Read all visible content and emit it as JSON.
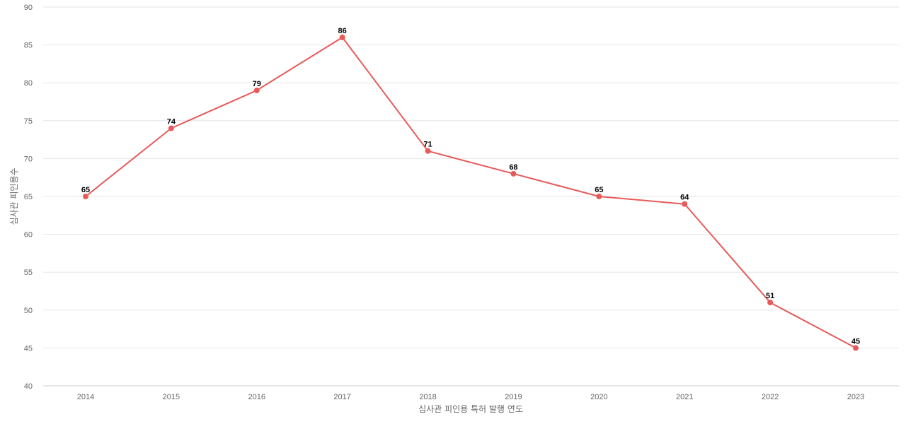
{
  "chart_data": {
    "type": "line",
    "title": "",
    "xlabel": "심사관 피인용 특허 발행 연도",
    "ylabel": "심사관 피인용수",
    "categories": [
      "2014",
      "2015",
      "2016",
      "2017",
      "2018",
      "2019",
      "2020",
      "2021",
      "2022",
      "2023"
    ],
    "series": [
      {
        "values": [
          65,
          74,
          79,
          86,
          71,
          68,
          65,
          64,
          51,
          45
        ]
      }
    ],
    "ylim": [
      40,
      90
    ],
    "yticks": [
      40,
      45,
      50,
      55,
      60,
      65,
      70,
      75,
      80,
      85,
      90
    ],
    "grid": true,
    "data_labels": true,
    "colors": {
      "line": "#e85a5a",
      "grid": "#e6e6e6",
      "axis": "#cccccc"
    }
  }
}
